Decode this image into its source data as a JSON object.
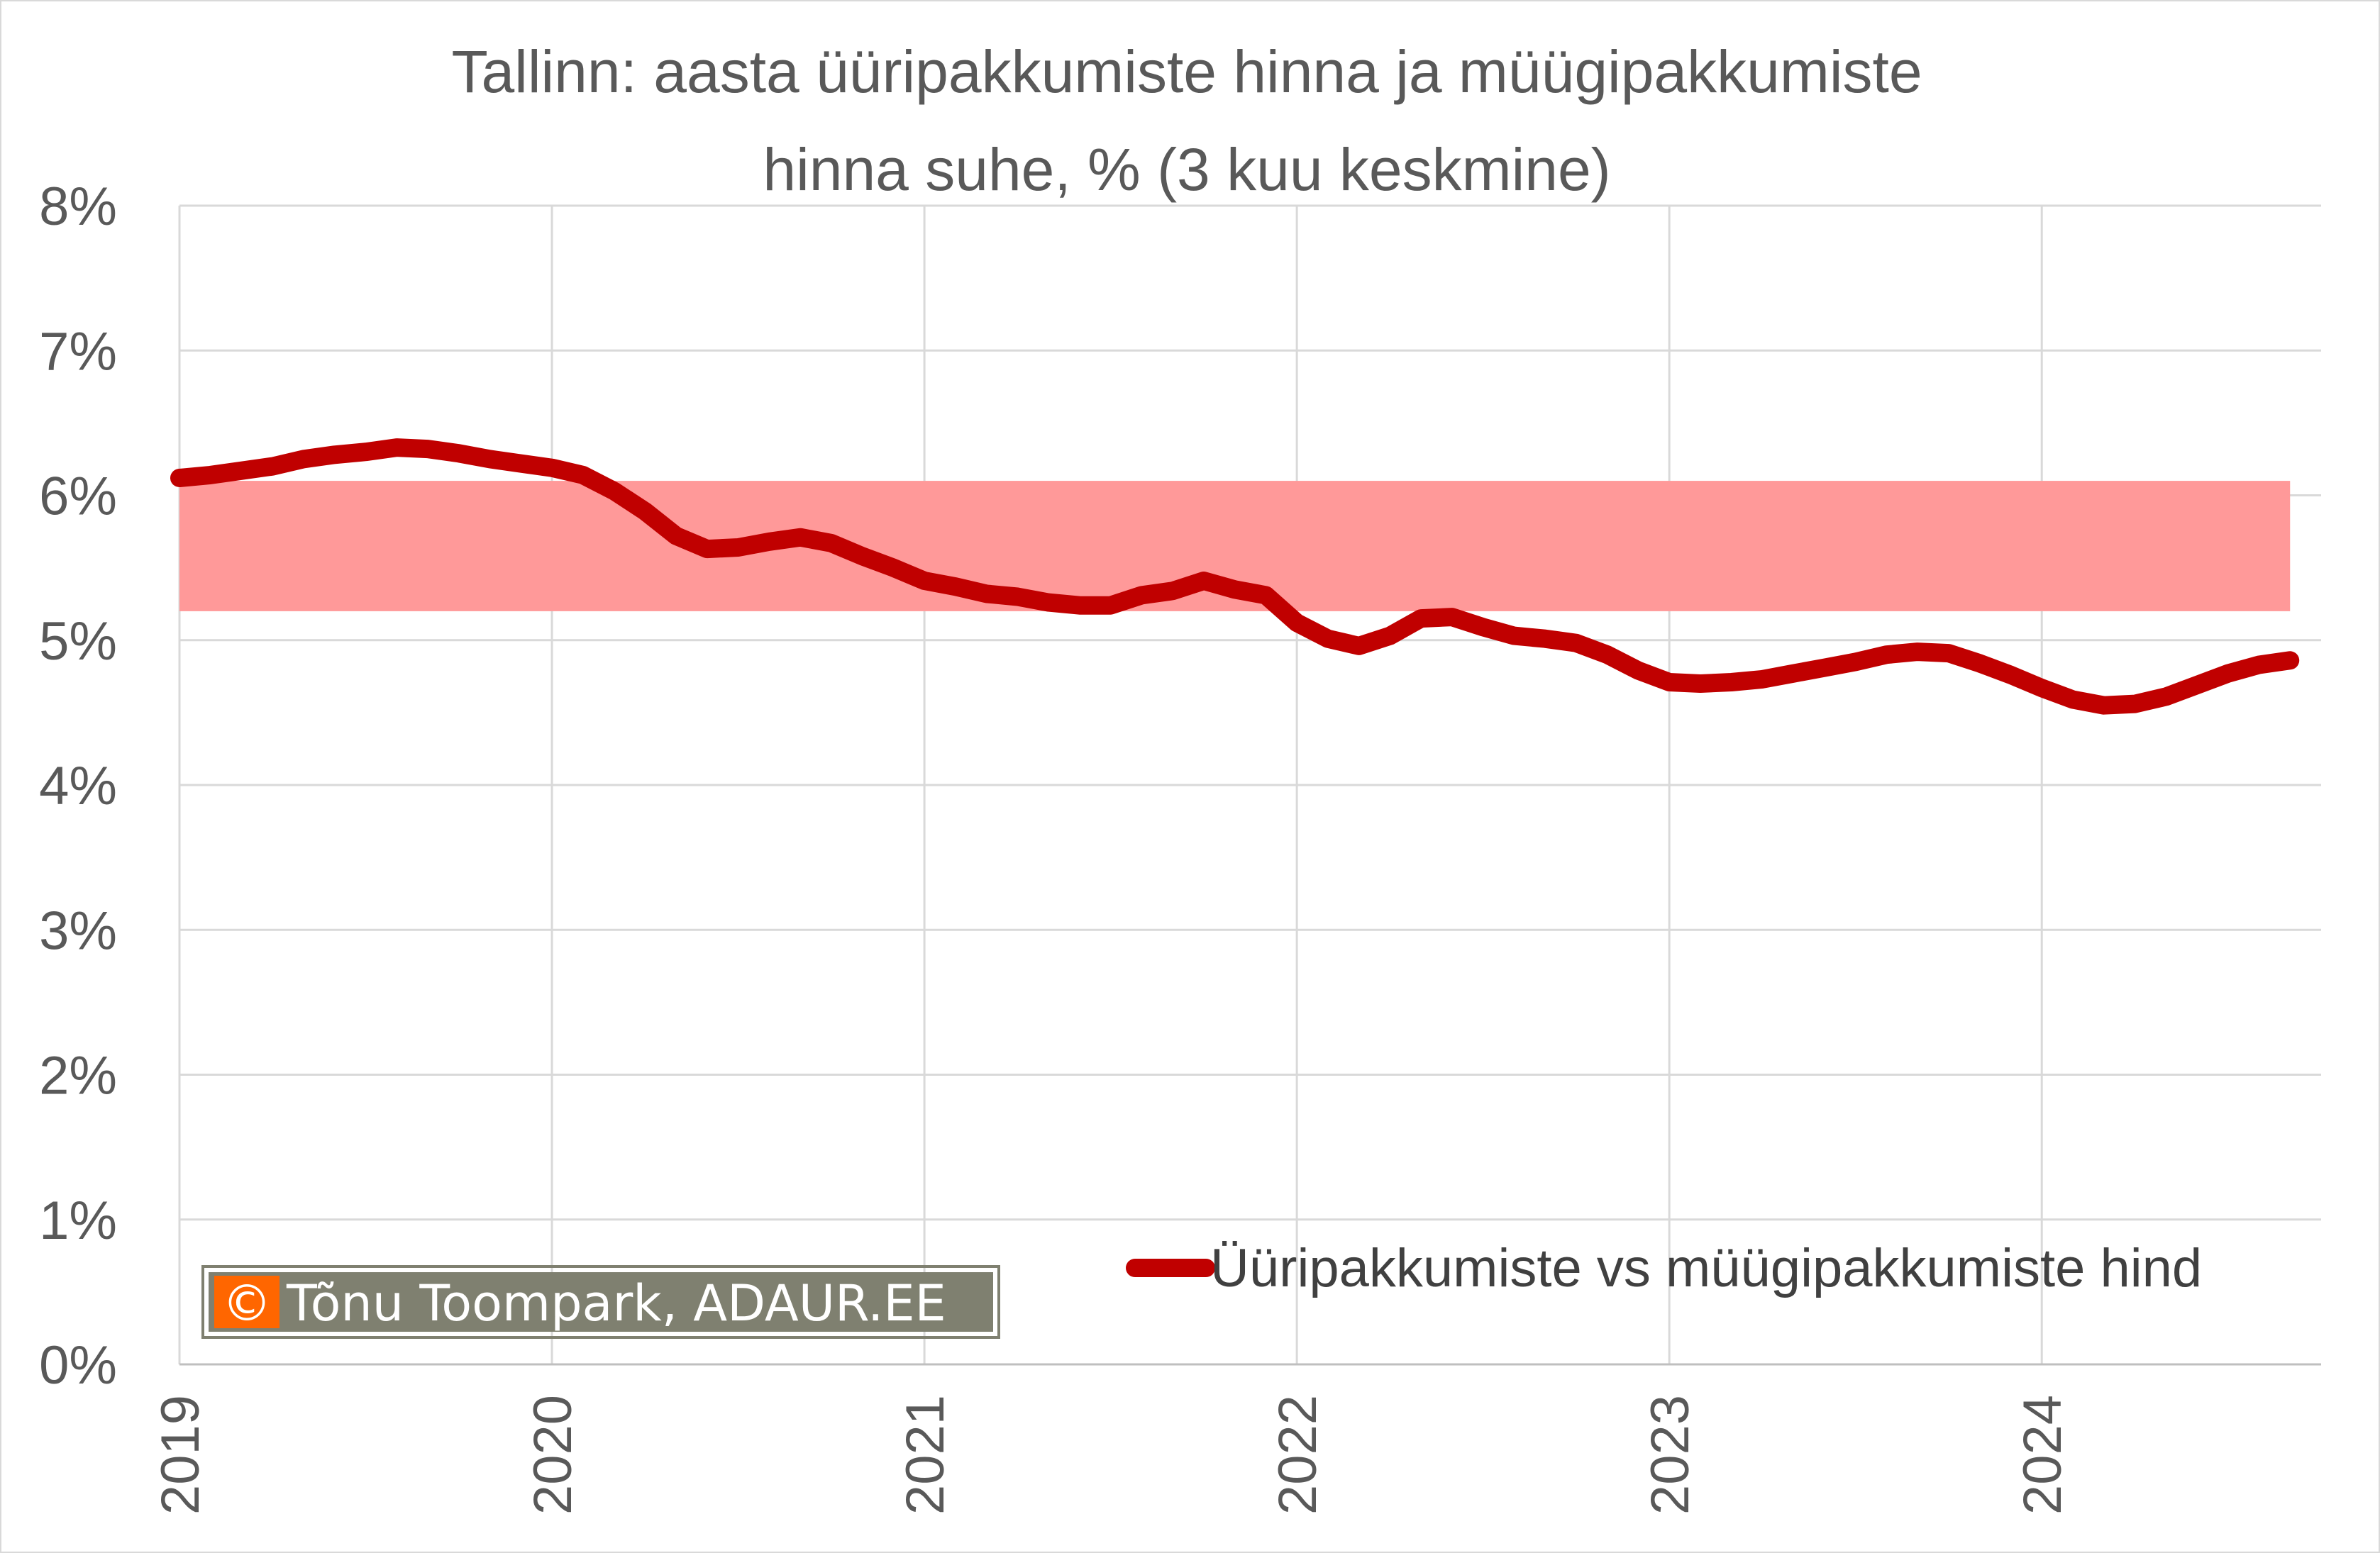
{
  "chart_data": {
    "type": "line",
    "title": "Tallinn: aasta üüripakkumiste hinna ja müügipakkumiste hinna suhe, % (3 kuu keskmine)",
    "title_lines": [
      "Tallinn: aasta üüripakkumiste hinna ja müügipakkumiste",
      "hinna suhe, % (3 kuu keskmine)"
    ],
    "xlabel": "",
    "ylabel": "",
    "x_ticks": [
      "2019",
      "2020",
      "2021",
      "2022",
      "2023",
      "2024"
    ],
    "y_ticks": [
      "0%",
      "1%",
      "2%",
      "3%",
      "4%",
      "5%",
      "6%",
      "7%",
      "8%"
    ],
    "ylim": [
      0,
      8
    ],
    "xlim": [
      "2019-01",
      "2024-10"
    ],
    "grid": true,
    "legend_position": "bottom-right",
    "band": {
      "from": 5.2,
      "to": 6.1,
      "color": "#ff9999"
    },
    "series": [
      {
        "name": "Üüripakkumiste vs müügipakkumiste hind",
        "color": "#c00000",
        "x": [
          "2019-01",
          "2019-02",
          "2019-03",
          "2019-04",
          "2019-05",
          "2019-06",
          "2019-07",
          "2019-08",
          "2019-09",
          "2019-10",
          "2019-11",
          "2019-12",
          "2020-01",
          "2020-02",
          "2020-03",
          "2020-04",
          "2020-05",
          "2020-06",
          "2020-07",
          "2020-08",
          "2020-09",
          "2020-10",
          "2020-11",
          "2020-12",
          "2021-01",
          "2021-02",
          "2021-03",
          "2021-04",
          "2021-05",
          "2021-06",
          "2021-07",
          "2021-08",
          "2021-09",
          "2021-10",
          "2021-11",
          "2021-12",
          "2022-01",
          "2022-02",
          "2022-03",
          "2022-04",
          "2022-05",
          "2022-06",
          "2022-07",
          "2022-08",
          "2022-09",
          "2022-10",
          "2022-11",
          "2022-12",
          "2023-01",
          "2023-02",
          "2023-03",
          "2023-04",
          "2023-05",
          "2023-06",
          "2023-07",
          "2023-08",
          "2023-09",
          "2023-10",
          "2023-11",
          "2023-12",
          "2024-01",
          "2024-02",
          "2024-03",
          "2024-04",
          "2024-05",
          "2024-06",
          "2024-07",
          "2024-08",
          "2024-09"
        ],
        "values": [
          6.12,
          6.14,
          6.17,
          6.2,
          6.25,
          6.28,
          6.3,
          6.33,
          6.32,
          6.29,
          6.25,
          6.22,
          6.19,
          6.14,
          6.03,
          5.89,
          5.72,
          5.63,
          5.64,
          5.68,
          5.71,
          5.67,
          5.58,
          5.5,
          5.41,
          5.37,
          5.32,
          5.3,
          5.26,
          5.24,
          5.24,
          5.31,
          5.34,
          5.41,
          5.35,
          5.31,
          5.12,
          5.01,
          4.96,
          5.03,
          5.15,
          5.16,
          5.09,
          5.03,
          5.01,
          4.98,
          4.9,
          4.79,
          4.71,
          4.7,
          4.71,
          4.73,
          4.77,
          4.81,
          4.85,
          4.9,
          4.92,
          4.91,
          4.84,
          4.76,
          4.67,
          4.59,
          4.55,
          4.56,
          4.61,
          4.69,
          4.77,
          4.83,
          4.86
        ]
      }
    ]
  },
  "credit": {
    "symbol": "©",
    "text": "Tõnu Toompark, ADAUR.EE",
    "symbol_bg": "#ff6600",
    "bg": "#7f8070"
  }
}
